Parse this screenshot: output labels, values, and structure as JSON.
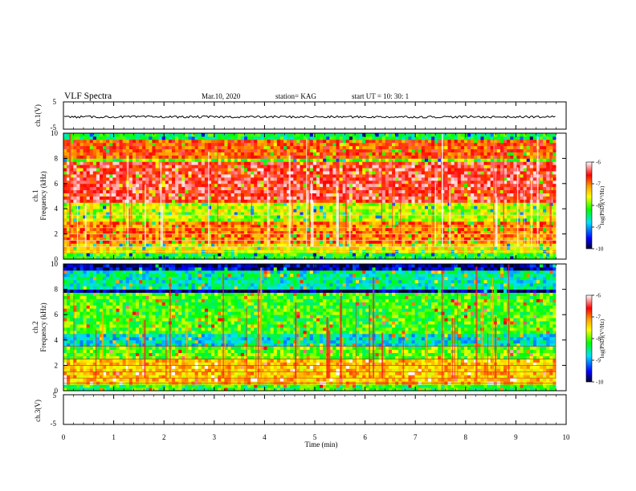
{
  "header": {
    "title": "VLF Spectra",
    "date": "Mar.10, 2020",
    "station": "station= KAG",
    "start": "start  UT  =   10: 30: 1"
  },
  "panels": {
    "ch1_wave_label": "ch.1(V)",
    "ch1_spec_label_top": "ch.1",
    "ch1_spec_label_bottom": "Frequency  (kHz)",
    "ch2_spec_label_top": "ch.2",
    "ch2_spec_label_bottom": "Frequency  (kHz)",
    "ch3_wave_label": "ch.3(V)",
    "xlabel": "Time  (min)"
  },
  "colorbar": {
    "label": "log(PSD)(V²/Hz)",
    "ticks": [
      "-6",
      "-7",
      "-8",
      "-9",
      "-10"
    ],
    "colors": [
      "#ffffff",
      "#ff0000",
      "#ffa000",
      "#ffff00",
      "#00ff00",
      "#00e0ff",
      "#0000ff",
      "#000030"
    ]
  },
  "chart_data": [
    {
      "type": "line",
      "name": "ch1-waveform",
      "ylabel": "ch.1(V)",
      "ylim": [
        -5,
        5
      ],
      "yticks": [
        "5",
        "-5"
      ],
      "xlim": [
        0,
        9.8
      ],
      "description_level_V": -0.5
    },
    {
      "type": "heatmap",
      "name": "ch1-spectrogram",
      "ylabel": "Frequency  (kHz)",
      "ylim": [
        0,
        10
      ],
      "yticks": [
        "0",
        "2",
        "4",
        "6",
        "8",
        "10"
      ],
      "xlim": [
        0,
        9.8
      ],
      "zlim": [
        -10,
        -6
      ],
      "zlabel": "log(PSD)(V²/Hz)",
      "bands_khz": [
        {
          "from": 0.0,
          "to": 0.4,
          "level": -8.2
        },
        {
          "from": 0.4,
          "to": 1.2,
          "level": -7.5
        },
        {
          "from": 1.2,
          "to": 3.0,
          "level": -7.0
        },
        {
          "from": 3.0,
          "to": 4.5,
          "level": -7.7
        },
        {
          "from": 4.5,
          "to": 7.8,
          "level": -6.5
        },
        {
          "from": 7.8,
          "to": 8.1,
          "level": -8.0
        },
        {
          "from": 8.1,
          "to": 9.6,
          "level": -6.8
        },
        {
          "from": 9.6,
          "to": 10.0,
          "level": -8.3
        }
      ]
    },
    {
      "type": "heatmap",
      "name": "ch2-spectrogram",
      "ylabel": "Frequency  (kHz)",
      "ylim": [
        0,
        10
      ],
      "yticks": [
        "0",
        "2",
        "4",
        "6",
        "8",
        "10"
      ],
      "xlim": [
        0,
        9.8
      ],
      "zlim": [
        -10,
        -6
      ],
      "zlabel": "log(PSD)(V²/Hz)",
      "bands_khz": [
        {
          "from": 0.0,
          "to": 0.4,
          "level": -8.2
        },
        {
          "from": 0.4,
          "to": 2.4,
          "level": -7.3
        },
        {
          "from": 2.4,
          "to": 3.5,
          "level": -8.0
        },
        {
          "from": 3.5,
          "to": 4.5,
          "level": -8.7
        },
        {
          "from": 4.5,
          "to": 7.8,
          "level": -8.1
        },
        {
          "from": 7.8,
          "to": 8.0,
          "level": -9.8
        },
        {
          "from": 8.0,
          "to": 9.5,
          "level": -8.6
        },
        {
          "from": 9.5,
          "to": 10.0,
          "level": -9.7
        }
      ]
    },
    {
      "type": "line",
      "name": "ch3-waveform",
      "ylabel": "ch.3(V)",
      "ylim": [
        -5,
        5
      ],
      "yticks": [
        "5",
        "-5"
      ],
      "xlim": [
        0,
        10
      ]
    }
  ],
  "xaxis": {
    "range": [
      0,
      10
    ],
    "ticks": [
      "0",
      "1",
      "2",
      "3",
      "4",
      "5",
      "6",
      "7",
      "8",
      "9",
      "10"
    ]
  }
}
